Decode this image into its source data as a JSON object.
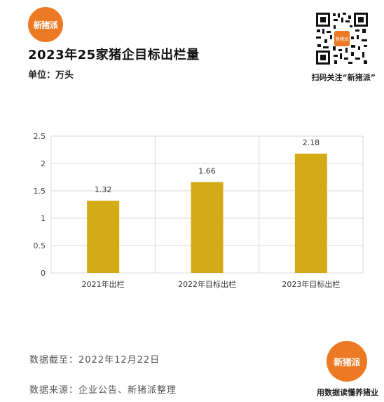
{
  "brand": {
    "logo_text": "新猪派"
  },
  "header": {
    "title": "2023年25家猪企目标出栏量",
    "unit": "单位：万头"
  },
  "qr": {
    "caption": "扫码关注“新猪派”",
    "center_text": "新猪派"
  },
  "chart_data": {
    "type": "bar",
    "categories": [
      "2021年出栏",
      "2022年目标出栏",
      "2023年目标出栏"
    ],
    "values": [
      1.32,
      1.66,
      2.18
    ],
    "data_labels": [
      "1.32",
      "1.66",
      "2.18"
    ],
    "y_ticks": [
      "0",
      "0.5",
      "1",
      "1.5",
      "2",
      "2.5"
    ],
    "ylim": [
      0,
      2.5
    ],
    "title": "",
    "xlabel": "",
    "ylabel": "",
    "grid": true,
    "bar_color": "#d4ab17"
  },
  "footer": {
    "date_line": "数据截至：2022年12月22日",
    "source_line": "数据来源：企业公告、新猪派整理",
    "slogan": "用数据读懂养猪业"
  },
  "colors": {
    "accent": "#ec7a24",
    "bar": "#d4ab17",
    "grid": "#d9d9d9"
  }
}
